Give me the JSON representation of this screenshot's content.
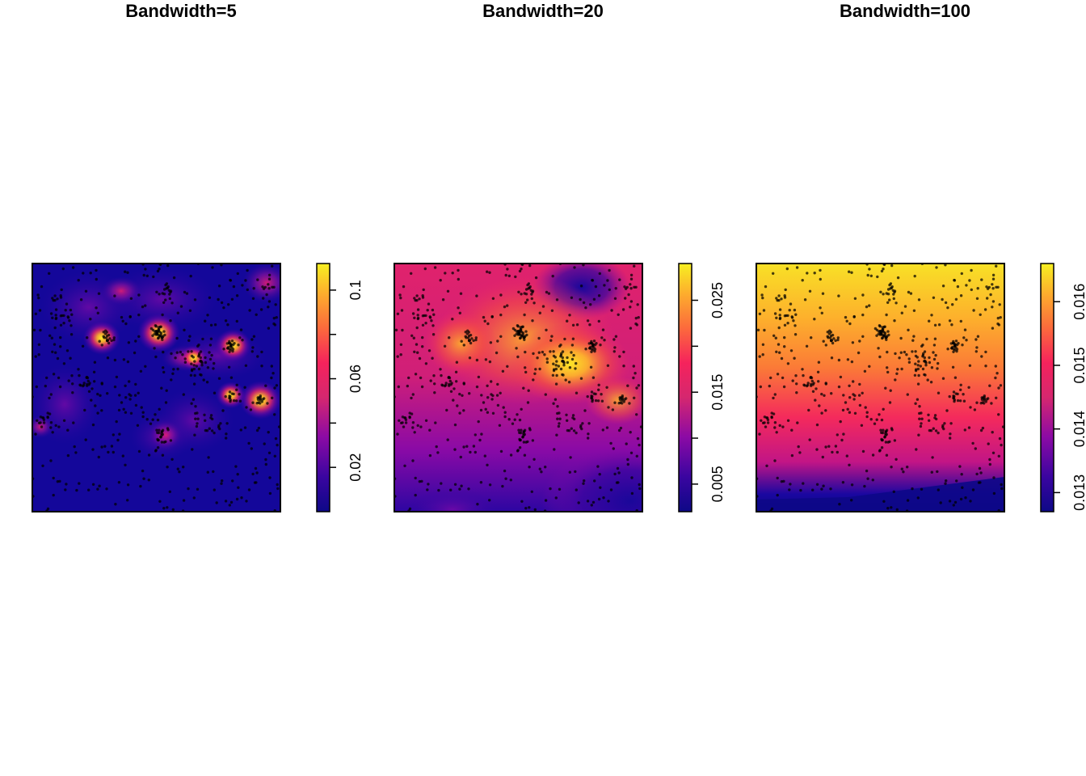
{
  "chart_data": [
    {
      "type": "heatmap",
      "title": "Bandwidth=5",
      "colorbar": {
        "range": [
          0.0,
          0.112
        ],
        "ticks": [
          0.02,
          0.04,
          0.06,
          0.08,
          0.1
        ],
        "tick_labels": [
          "0.02",
          "",
          "0.06",
          "",
          "0.1"
        ],
        "palette": "plasma-like (dark blue → purple → pink → orange → yellow)"
      },
      "hotspots": [
        {
          "x": 0.51,
          "y": 0.72,
          "value": 0.112
        },
        {
          "x": 0.92,
          "y": 0.45,
          "value": 0.11
        },
        {
          "x": 0.28,
          "y": 0.7,
          "value": 0.09
        },
        {
          "x": 0.81,
          "y": 0.67,
          "value": 0.085
        },
        {
          "x": 0.8,
          "y": 0.47,
          "value": 0.06
        },
        {
          "x": 0.65,
          "y": 0.62,
          "value": 0.05
        }
      ],
      "grid": false,
      "points_overlay": true
    },
    {
      "type": "heatmap",
      "title": "Bandwidth=20",
      "colorbar": {
        "range": [
          0.002,
          0.029
        ],
        "ticks": [
          0.005,
          0.01,
          0.015,
          0.02,
          0.025
        ],
        "tick_labels": [
          "0.005",
          "",
          "0.015",
          "",
          "0.025"
        ],
        "palette": "plasma-like (dark blue → purple → pink → orange → yellow)"
      },
      "hotspots": [
        {
          "x": 0.72,
          "y": 0.58,
          "value": 0.029
        },
        {
          "x": 0.5,
          "y": 0.72,
          "value": 0.025
        },
        {
          "x": 0.3,
          "y": 0.7,
          "value": 0.02
        },
        {
          "x": 0.9,
          "y": 0.45,
          "value": 0.018
        }
      ],
      "grid": false,
      "points_overlay": true
    },
    {
      "type": "heatmap",
      "title": "Bandwidth=100",
      "colorbar": {
        "range": [
          0.0127,
          0.0166
        ],
        "ticks": [
          0.013,
          0.014,
          0.015,
          0.016
        ],
        "tick_labels": [
          "0.013",
          "0.014",
          "0.015",
          "0.016"
        ],
        "palette": "plasma-like (dark blue → purple → pink → orange → yellow)"
      },
      "gradient": "increases from bottom (≈0.0127) to top (≈0.0166)",
      "grid": false,
      "points_overlay": true
    }
  ],
  "palette_stops": [
    "#0d0887",
    "#5402a3",
    "#8b0aa5",
    "#c93a83",
    "#ee1f6f",
    "#fc6a3c",
    "#fdae2d",
    "#f7e425"
  ]
}
